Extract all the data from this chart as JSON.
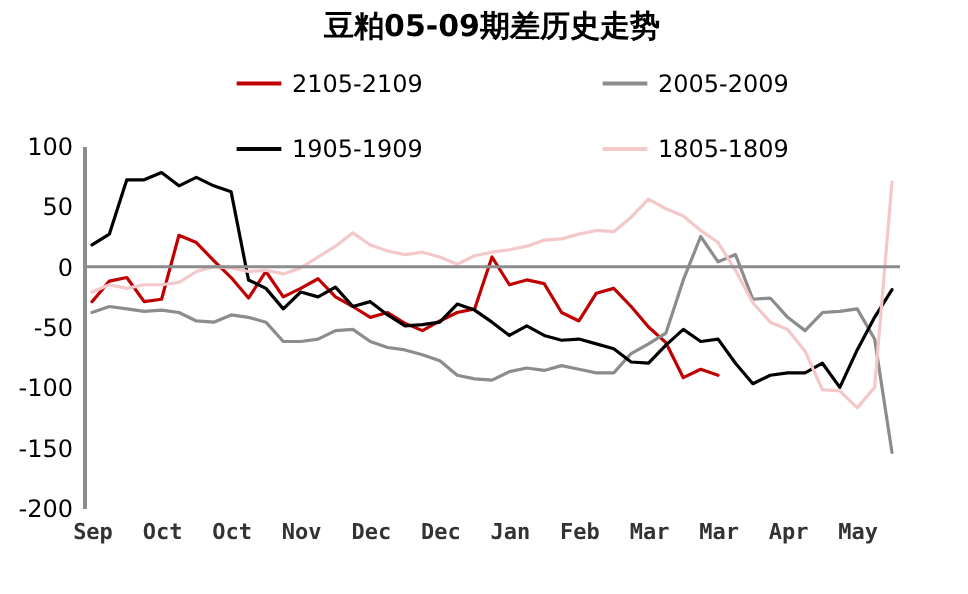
{
  "chart_data": {
    "type": "line",
    "title": "豆粕05-09期差历史走势",
    "categories": [
      "Sep",
      null,
      null,
      null,
      "Oct",
      null,
      null,
      null,
      "Oct",
      null,
      null,
      null,
      "Nov",
      null,
      null,
      null,
      "Dec",
      null,
      null,
      null,
      "Dec",
      null,
      null,
      null,
      "Jan",
      null,
      null,
      null,
      "Feb",
      null,
      null,
      null,
      "Mar",
      null,
      null,
      null,
      "Mar",
      null,
      null,
      null,
      "Apr",
      null,
      null,
      null,
      "May",
      null,
      null
    ],
    "ylim": [
      -200,
      100
    ],
    "yticks": [
      -200,
      -150,
      -100,
      -50,
      0,
      50,
      100
    ],
    "grid": false,
    "legend": "top",
    "line_style": "solid",
    "marker": "none",
    "ref_lines": [
      {
        "axis": "y",
        "value": 0,
        "color": "#8c8c8c"
      }
    ],
    "series": [
      {
        "name": "2105-2109",
        "color": "#c00000",
        "values": [
          -29,
          -12,
          -9,
          -29,
          -27,
          26,
          20,
          5,
          -9,
          -26,
          -4,
          -25,
          -18,
          -10,
          -25,
          -33,
          -42,
          -38,
          -47,
          -53,
          -45,
          -38,
          -35,
          8,
          -15,
          -11,
          -14,
          -38,
          -45,
          -22,
          -18,
          -33,
          -50,
          -63,
          -92,
          -85,
          -90,
          null,
          null,
          null,
          null,
          null,
          null,
          null,
          null,
          null,
          null
        ]
      },
      {
        "name": "2005-2009",
        "color": "#8c8c8c",
        "values": [
          -38,
          -33,
          -35,
          -37,
          -36,
          -38,
          -45,
          -46,
          -40,
          -42,
          -46,
          -62,
          -62,
          -60,
          -53,
          -52,
          -62,
          -67,
          -69,
          -73,
          -78,
          -90,
          -93,
          -94,
          -87,
          -84,
          -86,
          -82,
          -85,
          -88,
          -88,
          -72,
          -64,
          -55,
          -11,
          25,
          4,
          10,
          -27,
          -26,
          -42,
          -53,
          -38,
          -37,
          -35,
          -60,
          -154
        ]
      },
      {
        "name": "1905-1909",
        "color": "#000000",
        "values": [
          18,
          27,
          72,
          72,
          78,
          67,
          74,
          67,
          62,
          -11,
          -18,
          -35,
          -21,
          -25,
          -17,
          -33,
          -29,
          -40,
          -49,
          -48,
          -46,
          -31,
          -36,
          -46,
          -57,
          -49,
          -57,
          -61,
          -60,
          -64,
          -68,
          -79,
          -80,
          -65,
          -52,
          -62,
          -60,
          -80,
          -97,
          -90,
          -88,
          -88,
          -80,
          -100,
          -69,
          -42,
          -19
        ]
      },
      {
        "name": "1805-1809",
        "color": "#f4c7c9",
        "values": [
          -21,
          -15,
          -18,
          -15,
          -15,
          -13,
          -4,
          0,
          -1,
          -4,
          -3,
          -6,
          -1,
          8,
          17,
          28,
          18,
          13,
          10,
          12,
          8,
          2,
          9,
          12,
          14,
          17,
          22,
          23,
          27,
          30,
          29,
          41,
          56,
          48,
          42,
          30,
          20,
          -3,
          -30,
          -46,
          -52,
          -70,
          -102,
          -103,
          -117,
          -100,
          70
        ]
      }
    ]
  }
}
